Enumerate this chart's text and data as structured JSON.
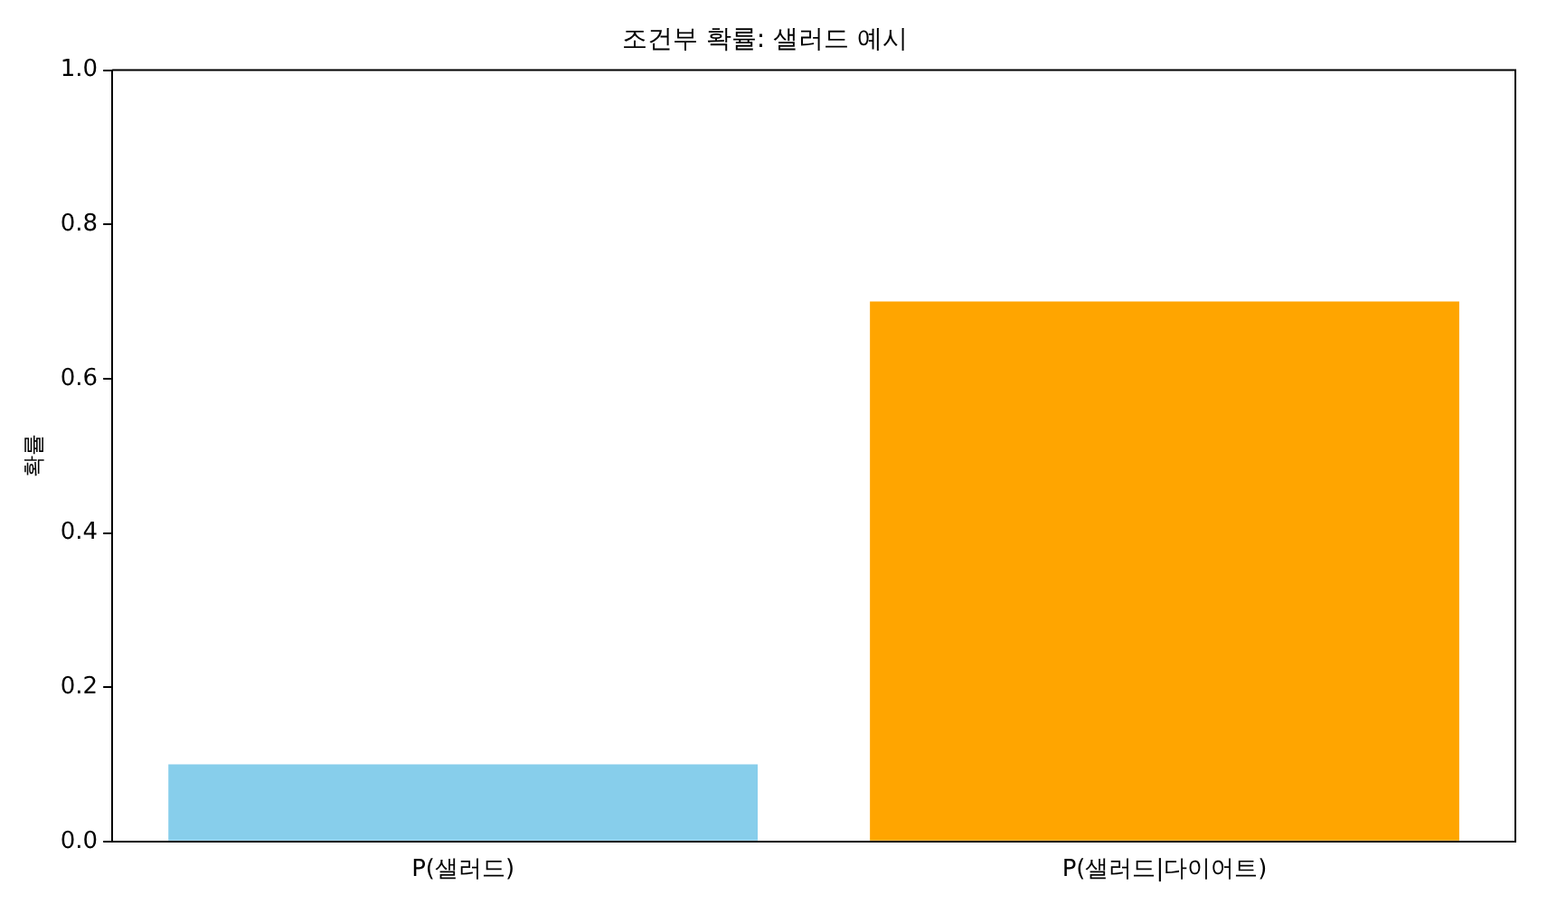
{
  "chart_data": {
    "type": "bar",
    "title": "조건부 확률: 샐러드 예시",
    "ylabel": "확률",
    "categories": [
      "P(샐러드)",
      "P(샐러드|다이어트)"
    ],
    "values": [
      0.1,
      0.7
    ],
    "colors": [
      "#87ceeb",
      "#ffa500"
    ],
    "ylim": [
      0,
      1
    ],
    "yticks": [
      {
        "value": 0,
        "label": "0.0"
      },
      {
        "value": 0.2,
        "label": "0.2"
      },
      {
        "value": 0.4,
        "label": "0.4"
      },
      {
        "value": 0.6,
        "label": "0.6"
      },
      {
        "value": 0.8,
        "label": "0.8"
      },
      {
        "value": 1,
        "label": "1.0"
      }
    ],
    "grid": false,
    "legend": false
  }
}
